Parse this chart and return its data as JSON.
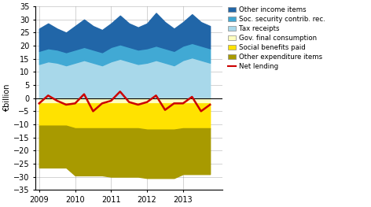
{
  "x_labels": [
    "2009",
    "2010",
    "2011",
    "2012",
    "2013"
  ],
  "ylim": [
    -35,
    35
  ],
  "yticks": [
    -35,
    -30,
    -25,
    -20,
    -15,
    -10,
    -5,
    0,
    5,
    10,
    15,
    20,
    25,
    30,
    35
  ],
  "ylabel": "€billion",
  "colors": {
    "other_income": "#2166A8",
    "soc_security": "#41A9D4",
    "tax_receipts": "#A8D8EA",
    "gov_consumption": "#FFFFC0",
    "social_benefits": "#FFE200",
    "other_expenditure": "#A89A00",
    "net_lending": "#CC0000"
  },
  "legend_labels": [
    "Other income items",
    "Soc. security contrib. rec.",
    "Tax receipts",
    "Gov. final consumption",
    "Social benefits paid",
    "Other expenditure items",
    "Net lending"
  ],
  "x": [
    2009.0,
    2009.25,
    2009.5,
    2009.75,
    2010.0,
    2010.25,
    2010.5,
    2010.75,
    2011.0,
    2011.25,
    2011.5,
    2011.75,
    2012.0,
    2012.25,
    2012.5,
    2012.75,
    2013.0,
    2013.25,
    2013.5,
    2013.75
  ],
  "tax_receipts": [
    13.0,
    14.0,
    13.5,
    12.5,
    13.5,
    14.5,
    13.5,
    12.5,
    14.0,
    15.0,
    14.0,
    13.0,
    13.5,
    14.5,
    13.5,
    12.5,
    14.5,
    15.5,
    14.5,
    13.5
  ],
  "soc_security": [
    5.0,
    5.0,
    5.0,
    5.0,
    5.0,
    5.0,
    5.0,
    5.0,
    5.5,
    5.5,
    5.5,
    5.5,
    5.5,
    5.5,
    5.5,
    5.5,
    5.5,
    5.5,
    5.5,
    5.5
  ],
  "other_income": [
    8.5,
    9.5,
    8.0,
    7.5,
    9.0,
    10.5,
    9.0,
    8.5,
    9.0,
    11.0,
    9.0,
    8.5,
    9.5,
    12.5,
    10.0,
    8.5,
    9.0,
    11.0,
    9.0,
    8.5
  ],
  "gov_consumption": [
    -2.0,
    -2.0,
    -2.0,
    -2.0,
    -2.0,
    -2.0,
    -2.0,
    -2.0,
    -2.0,
    -2.0,
    -2.0,
    -2.0,
    -2.0,
    -2.0,
    -2.0,
    -2.0,
    -2.0,
    -2.0,
    -2.0,
    -2.0
  ],
  "social_benefits": [
    -8.5,
    -8.5,
    -8.5,
    -8.5,
    -9.5,
    -9.5,
    -9.5,
    -9.5,
    -9.5,
    -9.5,
    -9.5,
    -9.5,
    -10.0,
    -10.0,
    -10.0,
    -10.0,
    -9.5,
    -9.5,
    -9.5,
    -9.5
  ],
  "other_expenditure": [
    -16.0,
    -16.0,
    -16.0,
    -16.0,
    -18.0,
    -18.0,
    -18.0,
    -18.0,
    -18.5,
    -18.5,
    -18.5,
    -18.5,
    -18.5,
    -18.5,
    -18.5,
    -18.5,
    -17.5,
    -17.5,
    -17.5,
    -17.5
  ],
  "net_lending": [
    -2.0,
    1.0,
    -1.0,
    -2.5,
    -2.0,
    1.5,
    -5.0,
    -2.0,
    -1.0,
    2.5,
    -1.5,
    -2.5,
    -1.5,
    1.0,
    -4.5,
    -2.0,
    -2.0,
    0.5,
    -5.0,
    -2.5
  ]
}
